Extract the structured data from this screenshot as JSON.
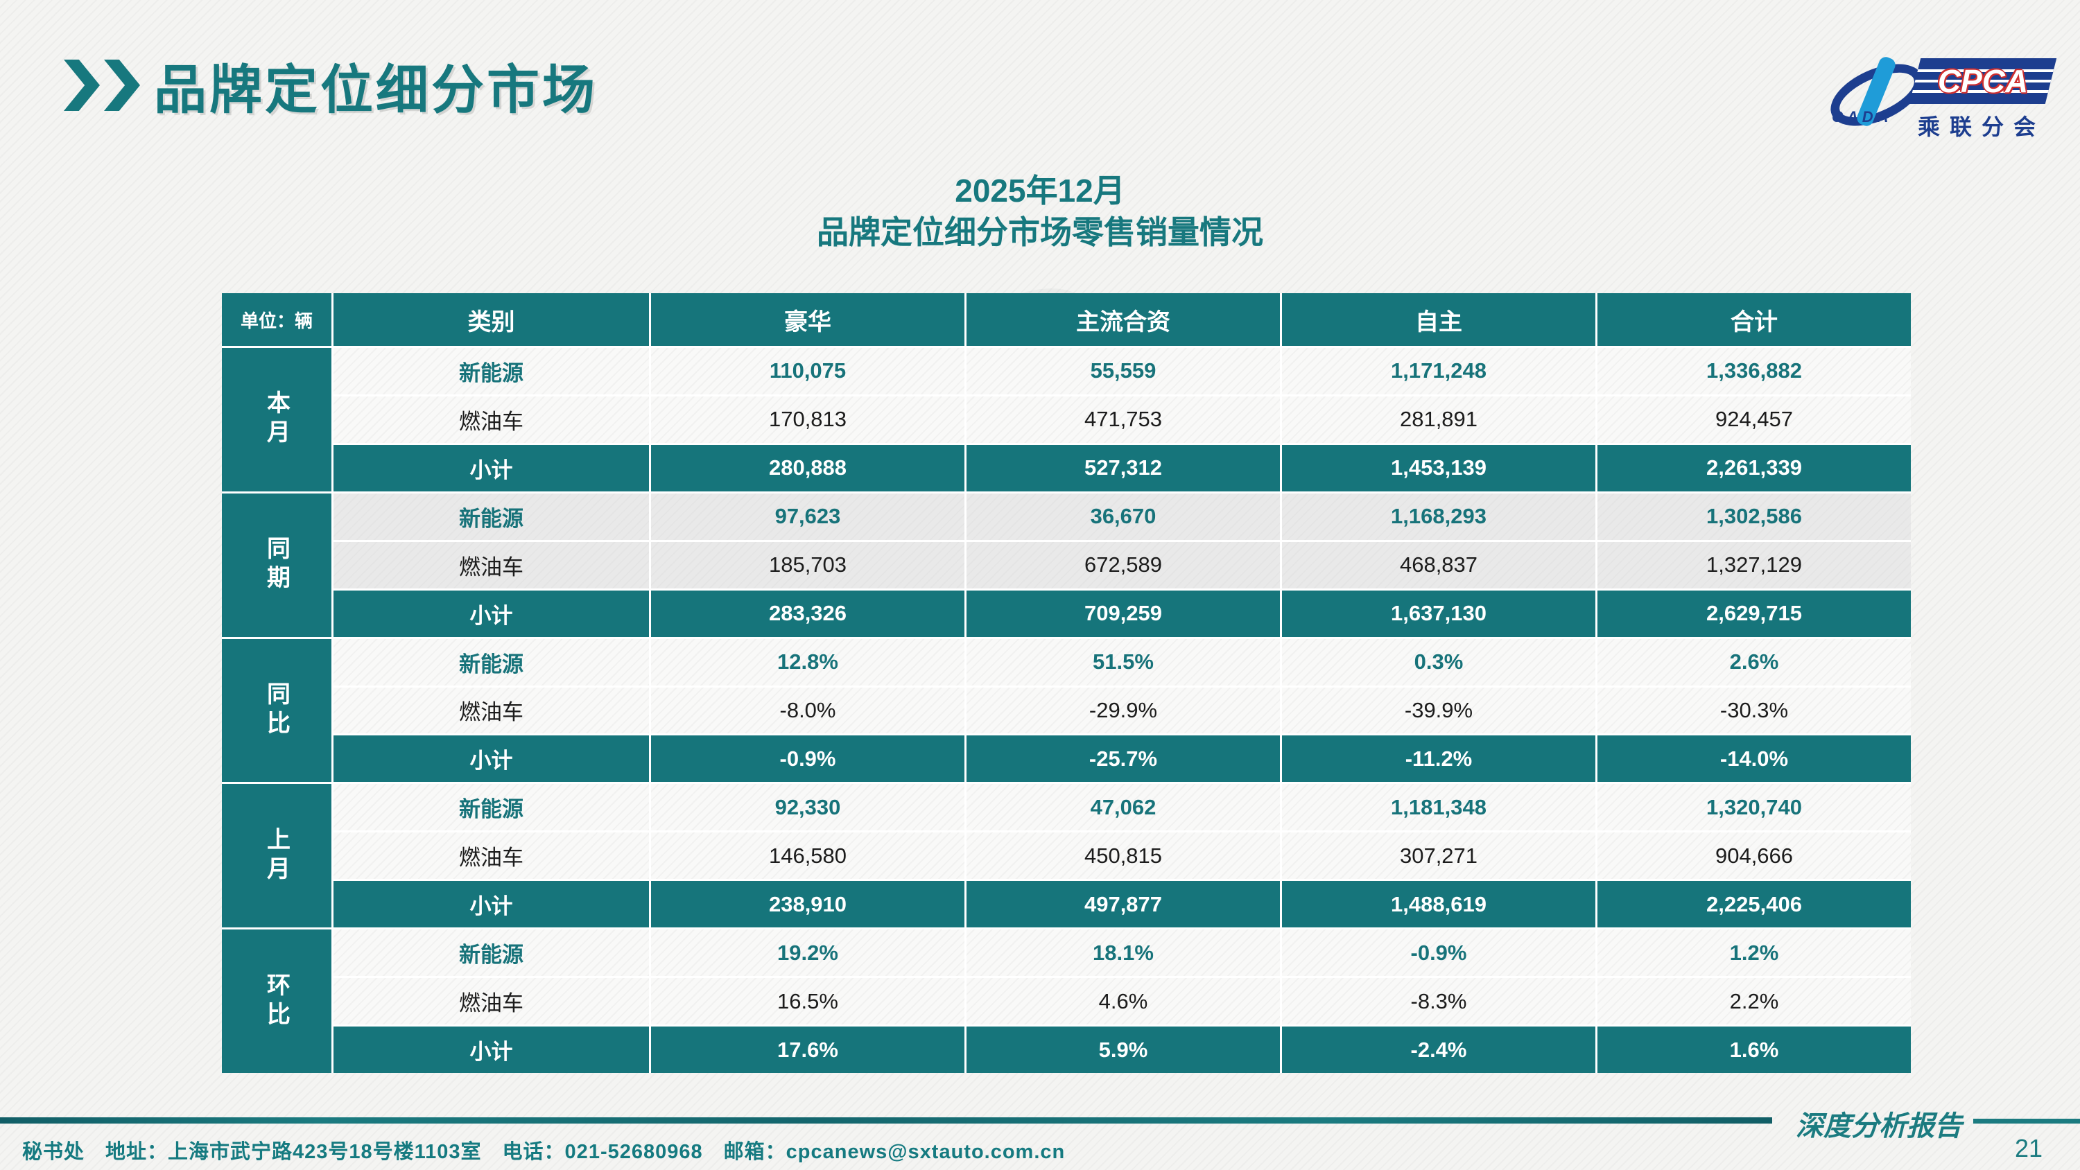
{
  "slide": {
    "title": "品牌定位细分市场",
    "date_line": "2025年12月",
    "subtitle": "品牌定位细分市场零售销量情况",
    "report_type": "深度分析报告",
    "page_number": "21",
    "footer_text": "秘书处　地址：上海市武宁路423号18号楼1103室　电话：021-52680968　邮箱：cpcanews@sxtauto.com.cn"
  },
  "logo": {
    "cpca": "CPCA",
    "cada": "CADA",
    "branch": "乘联分会"
  },
  "colors": {
    "teal": "#16757b",
    "teal_text": "#17737a",
    "navy": "#1d3e8f",
    "red": "#cf2e2e",
    "cyan": "#1f9cd8"
  },
  "chart_data": {
    "type": "table",
    "title": "2025年12月 品牌定位细分市场零售销量情况",
    "unit": "单位：辆",
    "columns": [
      "类别",
      "豪华",
      "主流合资",
      "自主",
      "合计"
    ],
    "row_groups": [
      {
        "label": "本月",
        "shaded": false,
        "rows": [
          {
            "label": "新能源",
            "values": [
              "110,075",
              "55,559",
              "1,171,248",
              "1,336,882"
            ]
          },
          {
            "label": "燃油车",
            "values": [
              "170,813",
              "471,753",
              "281,891",
              "924,457"
            ]
          },
          {
            "label": "小计",
            "values": [
              "280,888",
              "527,312",
              "1,453,139",
              "2,261,339"
            ]
          }
        ]
      },
      {
        "label": "同期",
        "shaded": true,
        "rows": [
          {
            "label": "新能源",
            "values": [
              "97,623",
              "36,670",
              "1,168,293",
              "1,302,586"
            ]
          },
          {
            "label": "燃油车",
            "values": [
              "185,703",
              "672,589",
              "468,837",
              "1,327,129"
            ]
          },
          {
            "label": "小计",
            "values": [
              "283,326",
              "709,259",
              "1,637,130",
              "2,629,715"
            ]
          }
        ]
      },
      {
        "label": "同比",
        "shaded": false,
        "rows": [
          {
            "label": "新能源",
            "values": [
              "12.8%",
              "51.5%",
              "0.3%",
              "2.6%"
            ]
          },
          {
            "label": "燃油车",
            "values": [
              "-8.0%",
              "-29.9%",
              "-39.9%",
              "-30.3%"
            ]
          },
          {
            "label": "小计",
            "values": [
              "-0.9%",
              "-25.7%",
              "-11.2%",
              "-14.0%"
            ]
          }
        ]
      },
      {
        "label": "上月",
        "shaded": false,
        "rows": [
          {
            "label": "新能源",
            "values": [
              "92,330",
              "47,062",
              "1,181,348",
              "1,320,740"
            ]
          },
          {
            "label": "燃油车",
            "values": [
              "146,580",
              "450,815",
              "307,271",
              "904,666"
            ]
          },
          {
            "label": "小计",
            "values": [
              "238,910",
              "497,877",
              "1,488,619",
              "2,225,406"
            ]
          }
        ]
      },
      {
        "label": "环比",
        "shaded": false,
        "rows": [
          {
            "label": "新能源",
            "values": [
              "19.2%",
              "18.1%",
              "-0.9%",
              "1.2%"
            ]
          },
          {
            "label": "燃油车",
            "values": [
              "16.5%",
              "4.6%",
              "-8.3%",
              "2.2%"
            ]
          },
          {
            "label": "小计",
            "values": [
              "17.6%",
              "5.9%",
              "-2.4%",
              "1.6%"
            ]
          }
        ]
      }
    ]
  }
}
